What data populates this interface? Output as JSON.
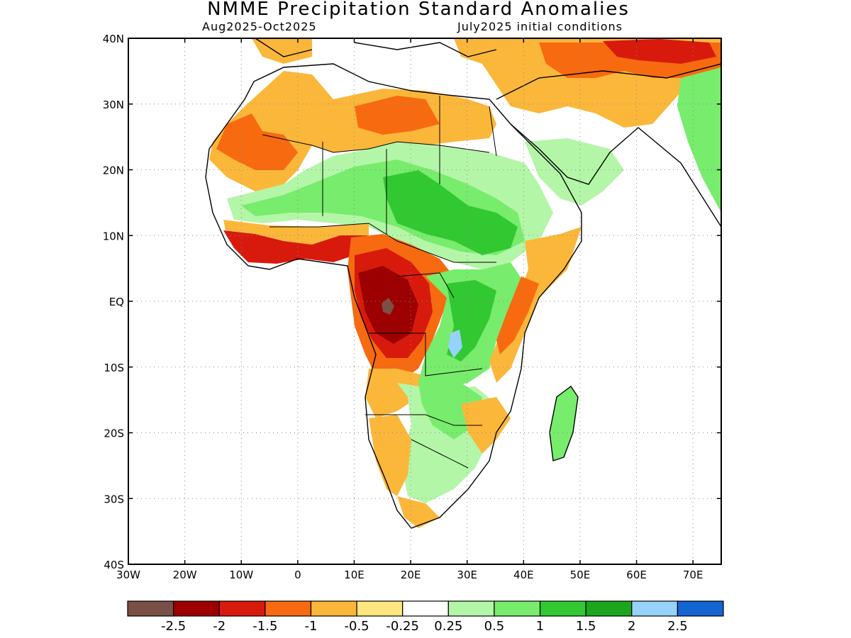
{
  "title": "NMME Precipitation Standard Anomalies",
  "subtitle_left": "Aug2025-Oct2025",
  "subtitle_right": "July2025 initial conditions",
  "axes": {
    "lon_ticks": [
      "30W",
      "20W",
      "10W",
      "0",
      "10E",
      "20E",
      "30E",
      "40E",
      "50E",
      "60E",
      "70E"
    ],
    "lat_ticks": [
      "40N",
      "30N",
      "20N",
      "10N",
      "EQ",
      "10S",
      "20S",
      "30S",
      "40S"
    ],
    "lon_range": [
      -30,
      75
    ],
    "lat_range": [
      -40,
      40
    ],
    "grid": "dotted"
  },
  "legend": {
    "labels": [
      "-2.5",
      "-2",
      "-1.5",
      "-1",
      "-0.5",
      "-0.25",
      "0.25",
      "0.5",
      "1",
      "1.5",
      "2",
      "2.5"
    ],
    "colors": [
      "#7a4f45",
      "#9c0000",
      "#d81a0c",
      "#f76a10",
      "#fbb73a",
      "#fde580",
      "#ffffff",
      "#b4f6a8",
      "#78ec6c",
      "#32c832",
      "#1ea51e",
      "#96d2fa",
      "#1464d2"
    ]
  }
}
